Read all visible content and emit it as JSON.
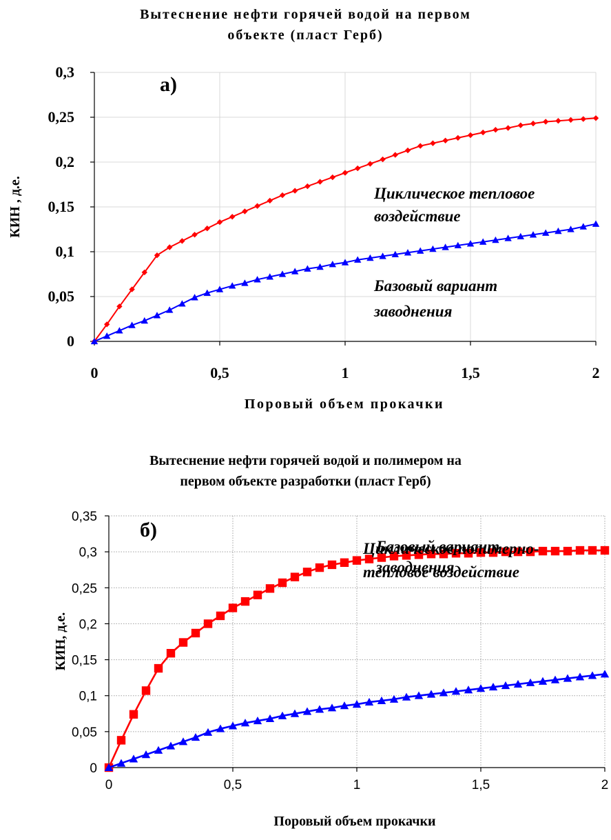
{
  "chart_data": [
    {
      "type": "line",
      "title_lines": [
        "Вытеснение нефти горячей водой на первом",
        "объекте (пласт Герб)"
      ],
      "panel_label": "а)",
      "xlabel": "Поровый объем прокачки",
      "ylabel": "КИН , д.е.",
      "xlim": [
        0,
        2
      ],
      "ylim": [
        0,
        0.3
      ],
      "x_ticks": [
        0,
        0.5,
        1,
        1.5,
        2
      ],
      "x_tick_labels": [
        "0",
        "0,5",
        "1",
        "1,5",
        "2"
      ],
      "y_ticks": [
        0,
        0.05,
        0.1,
        0.15,
        0.2,
        0.25,
        0.3
      ],
      "y_tick_labels": [
        "0",
        "0,05",
        "0,1",
        "0,15",
        "0,2",
        "0,25",
        "0,3"
      ],
      "grid": true,
      "x": [
        0,
        0.05,
        0.1,
        0.15,
        0.2,
        0.25,
        0.3,
        0.35,
        0.4,
        0.45,
        0.5,
        0.55,
        0.6,
        0.65,
        0.7,
        0.75,
        0.8,
        0.85,
        0.9,
        0.95,
        1,
        1.05,
        1.1,
        1.15,
        1.2,
        1.25,
        1.3,
        1.35,
        1.4,
        1.45,
        1.5,
        1.55,
        1.6,
        1.65,
        1.7,
        1.75,
        1.8,
        1.85,
        1.9,
        1.95,
        2
      ],
      "series": [
        {
          "color": "#ff0000",
          "marker": "diamond",
          "values": [
            0,
            0.019,
            0.039,
            0.058,
            0.077,
            0.096,
            0.105,
            0.112,
            0.119,
            0.126,
            0.133,
            0.139,
            0.145,
            0.151,
            0.157,
            0.163,
            0.168,
            0.173,
            0.178,
            0.183,
            0.188,
            0.193,
            0.198,
            0.203,
            0.208,
            0.213,
            0.218,
            0.221,
            0.224,
            0.227,
            0.23,
            0.233,
            0.236,
            0.238,
            0.241,
            0.243,
            0.245,
            0.246,
            0.247,
            0.248,
            0.249
          ]
        },
        {
          "color": "#0000ff",
          "marker": "triangle",
          "values": [
            0,
            0.006,
            0.012,
            0.018,
            0.023,
            0.029,
            0.035,
            0.042,
            0.049,
            0.054,
            0.058,
            0.062,
            0.065,
            0.069,
            0.072,
            0.075,
            0.078,
            0.081,
            0.083,
            0.086,
            0.088,
            0.091,
            0.093,
            0.095,
            0.097,
            0.099,
            0.101,
            0.103,
            0.105,
            0.107,
            0.109,
            0.111,
            0.113,
            0.115,
            0.117,
            0.119,
            0.121,
            0.123,
            0.125,
            0.128,
            0.131
          ]
        }
      ],
      "annotations": [
        {
          "lines": [
            "Циклическое тепловое",
            "воздействие"
          ],
          "color": "#000000"
        },
        {
          "lines": [
            "Базовый вариант",
            "заводнения"
          ],
          "color": "#000000"
        }
      ]
    },
    {
      "type": "line",
      "title_lines": [
        "Вытеснение нефти горячей водой и полимером на",
        "первом объекте разработки (пласт Герб)"
      ],
      "panel_label": "б)",
      "xlabel": "Поровый объем прокачки",
      "ylabel": "КИН, д.е.",
      "xlim": [
        0,
        2
      ],
      "ylim": [
        0,
        0.35
      ],
      "x_ticks": [
        0,
        0.5,
        1,
        1.5,
        2
      ],
      "x_tick_labels": [
        "0",
        "0,5",
        "1",
        "1,5",
        "2"
      ],
      "y_ticks": [
        0,
        0.05,
        0.1,
        0.15,
        0.2,
        0.25,
        0.3,
        0.35
      ],
      "y_tick_labels": [
        "0",
        "0,05",
        "0,1",
        "0,15",
        "0,2",
        "0,25",
        "0,3",
        "0,35"
      ],
      "grid": true,
      "x": [
        0,
        0.05,
        0.1,
        0.15,
        0.2,
        0.25,
        0.3,
        0.35,
        0.4,
        0.45,
        0.5,
        0.55,
        0.6,
        0.65,
        0.7,
        0.75,
        0.8,
        0.85,
        0.9,
        0.95,
        1,
        1.05,
        1.1,
        1.15,
        1.2,
        1.25,
        1.3,
        1.35,
        1.4,
        1.45,
        1.5,
        1.55,
        1.6,
        1.65,
        1.7,
        1.75,
        1.8,
        1.85,
        1.9,
        1.95,
        2
      ],
      "series": [
        {
          "color": "#ff0000",
          "marker": "square",
          "values": [
            0,
            0.038,
            0.074,
            0.107,
            0.138,
            0.159,
            0.174,
            0.187,
            0.2,
            0.211,
            0.222,
            0.231,
            0.24,
            0.249,
            0.257,
            0.265,
            0.272,
            0.278,
            0.282,
            0.285,
            0.288,
            0.29,
            0.292,
            0.294,
            0.295,
            0.296,
            0.297,
            0.297,
            0.298,
            0.298,
            0.299,
            0.299,
            0.3,
            0.3,
            0.3,
            0.301,
            0.301,
            0.301,
            0.302,
            0.302,
            0.302
          ]
        },
        {
          "color": "#0000ff",
          "marker": "triangle",
          "values": [
            0,
            0.006,
            0.012,
            0.018,
            0.024,
            0.03,
            0.036,
            0.042,
            0.049,
            0.054,
            0.058,
            0.062,
            0.065,
            0.068,
            0.072,
            0.075,
            0.078,
            0.081,
            0.083,
            0.086,
            0.088,
            0.091,
            0.093,
            0.095,
            0.098,
            0.1,
            0.102,
            0.104,
            0.106,
            0.108,
            0.11,
            0.112,
            0.114,
            0.116,
            0.118,
            0.12,
            0.122,
            0.124,
            0.126,
            0.128,
            0.13
          ]
        }
      ],
      "annotations": [
        {
          "lines": [
            "Циклическое полимерно-",
            "тепловое воздействие"
          ],
          "color": "#000000"
        },
        {
          "lines": [
            "Базовый вариант",
            "заводнения"
          ],
          "color": "#000000"
        }
      ]
    }
  ]
}
